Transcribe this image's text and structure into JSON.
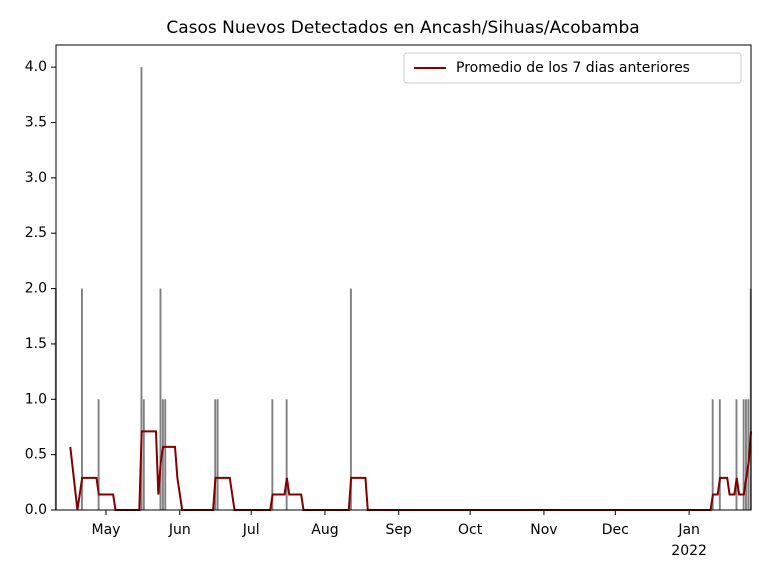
{
  "chart_data": {
    "type": "bar_line",
    "title": "Casos Nuevos Detectados en Ancash/Sihuas/Acobamba",
    "xlim": [
      0,
      292
    ],
    "xticks": [
      {
        "value": 21,
        "label": "May"
      },
      {
        "value": 52,
        "label": "Jun"
      },
      {
        "value": 82,
        "label": "Jul"
      },
      {
        "value": 113,
        "label": "Aug"
      },
      {
        "value": 144,
        "label": "Sep"
      },
      {
        "value": 174,
        "label": "Oct"
      },
      {
        "value": 205,
        "label": "Nov"
      },
      {
        "value": 235,
        "label": "Dec"
      },
      {
        "value": 266,
        "label": "Jan"
      }
    ],
    "x_year_label": "2022",
    "ylim": [
      0,
      4.2
    ],
    "yticks": [
      {
        "value": 0,
        "label": "0.0"
      },
      0.5,
      {
        "value": 1,
        "label": "1.0"
      },
      1.5,
      {
        "value": 2,
        "label": "2.0"
      },
      2.5,
      {
        "value": 3,
        "label": "3.0"
      },
      3.5,
      {
        "value": 4,
        "label": "4.0"
      }
    ],
    "bars": {
      "color": "#808080",
      "x": [
        0,
        11,
        18,
        36,
        37,
        44,
        45,
        46,
        67,
        68,
        91,
        97,
        124,
        276,
        279,
        286,
        289,
        290,
        291,
        292
      ],
      "values": [
        2,
        2,
        1,
        4,
        1,
        2,
        1,
        1,
        1,
        1,
        1,
        1,
        2,
        1,
        1,
        1,
        1,
        1,
        1,
        2
      ]
    },
    "series": [
      {
        "name": "Promedio de los 7 dias anteriores",
        "color": "#800000",
        "x": [
          6,
          9,
          11,
          17,
          18,
          24,
          25,
          35,
          36,
          42,
          43,
          44,
          45,
          50,
          51,
          53,
          66,
          67,
          73,
          75,
          90,
          91,
          96,
          97,
          98,
          103,
          104,
          123,
          124,
          130,
          131,
          275,
          276,
          278,
          279,
          282,
          283,
          285,
          286,
          287,
          289,
          290,
          291,
          292
        ],
        "values": [
          0.57,
          0,
          0.29,
          0.29,
          0.14,
          0.14,
          0,
          0,
          0.71,
          0.71,
          0.14,
          0.43,
          0.57,
          0.57,
          0.29,
          0,
          0,
          0.29,
          0.29,
          0,
          0,
          0.14,
          0.14,
          0.29,
          0.14,
          0.14,
          0,
          0,
          0.29,
          0.29,
          0,
          0,
          0.14,
          0.14,
          0.29,
          0.29,
          0.14,
          0.14,
          0.29,
          0.14,
          0.14,
          0.29,
          0.43,
          0.71
        ]
      }
    ],
    "legend": "upper right"
  }
}
